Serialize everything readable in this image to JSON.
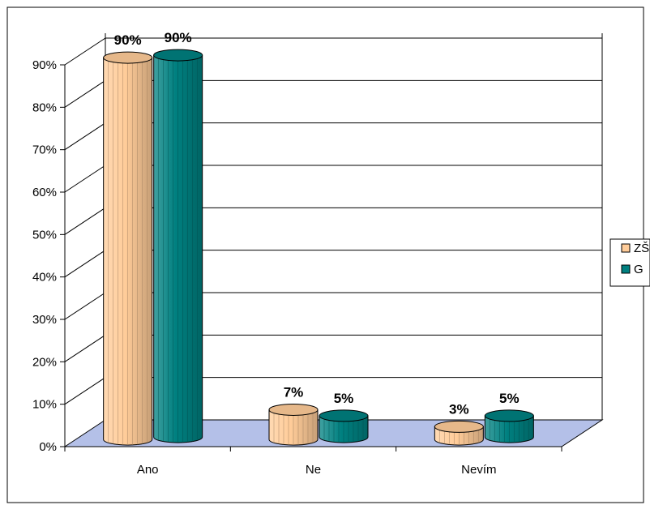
{
  "chart_data": {
    "type": "bar",
    "categories": [
      "Ano",
      "Ne",
      "Nevím"
    ],
    "series": [
      {
        "name": "ZŠ",
        "values": [
          90,
          7,
          3
        ],
        "color": "#FFCC99"
      },
      {
        "name": "G",
        "values": [
          90,
          5,
          5
        ],
        "color": "#008080"
      }
    ],
    "value_labels": [
      [
        "90%",
        "7%",
        "3%"
      ],
      [
        "90%",
        "5%",
        "5%"
      ]
    ],
    "y_ticks": [
      "0%",
      "10%",
      "20%",
      "30%",
      "40%",
      "50%",
      "60%",
      "70%",
      "80%",
      "90%"
    ],
    "ylim": [
      0,
      90
    ],
    "grid": true,
    "legend_position": "right",
    "floor_color": "#B4C0E8",
    "style": "3d-cylinder"
  }
}
